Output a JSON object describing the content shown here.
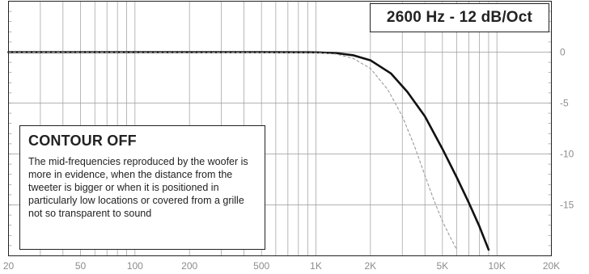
{
  "title_box": {
    "text": "2600 Hz - 12 dB/Oct"
  },
  "note": {
    "title": "CONTOUR OFF",
    "body": "The mid-frequencies reproduced by the woofer is more in evidence, when the distance from the tweeter is bigger or when it is positioned in particularly low locations or covered from a grille not so transparent to sound"
  },
  "colors": {
    "curve": "#111111",
    "reference": "#9a9a9a",
    "grid": "#9a9a9a",
    "tick_text": "#8c8c8c",
    "frame": "#222222"
  },
  "chart_data": {
    "type": "line",
    "x_scale": "log",
    "xlim": [
      20,
      20000
    ],
    "ylim": [
      -20,
      5
    ],
    "x_ticks": [
      {
        "value": 20,
        "label": "20"
      },
      {
        "value": 50,
        "label": "50"
      },
      {
        "value": 100,
        "label": "100"
      },
      {
        "value": 200,
        "label": "200"
      },
      {
        "value": 500,
        "label": "500"
      },
      {
        "value": 1000,
        "label": "1K"
      },
      {
        "value": 2000,
        "label": "2K"
      },
      {
        "value": 5000,
        "label": "5K"
      },
      {
        "value": 10000,
        "label": "10K"
      },
      {
        "value": 20000,
        "label": "20K"
      }
    ],
    "y_ticks": [
      {
        "value": 0,
        "label": "0"
      },
      {
        "value": -5,
        "label": "-5"
      },
      {
        "value": -10,
        "label": "-10"
      },
      {
        "value": -15,
        "label": "-15"
      }
    ],
    "grid": true,
    "series": [
      {
        "style": "solid",
        "x": [
          20,
          100,
          500,
          1000,
          1300,
          1600,
          2000,
          2600,
          3200,
          4000,
          5000,
          6000,
          7000,
          8000,
          9000
        ],
        "y": [
          0,
          0,
          0,
          -0.02,
          -0.1,
          -0.3,
          -0.8,
          -2.1,
          -3.9,
          -6.3,
          -9.5,
          -12.3,
          -14.8,
          -17.1,
          -19.4
        ]
      },
      {
        "style": "dashed",
        "x": [
          20,
          1000,
          1300,
          1600,
          2000,
          2500,
          3000,
          3500,
          4000,
          4500,
          5000,
          5500,
          6000
        ],
        "y": [
          0,
          -0.05,
          -0.2,
          -0.6,
          -1.6,
          -3.7,
          -6.3,
          -9.2,
          -12.1,
          -14.6,
          -16.6,
          -18.1,
          -19.4
        ]
      }
    ]
  }
}
